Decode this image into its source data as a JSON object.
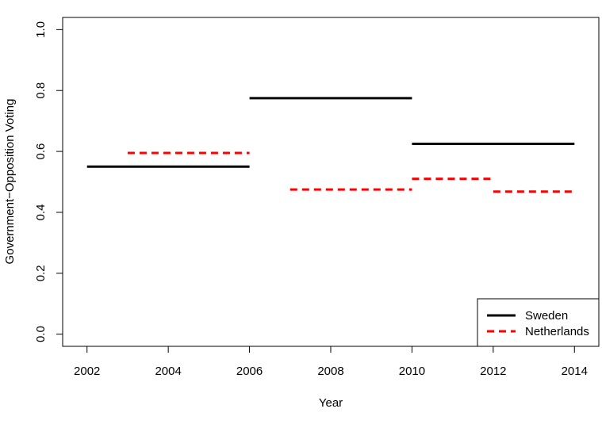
{
  "chart_data": {
    "type": "line",
    "title": "",
    "xlabel": "Year",
    "ylabel": "Government−Opposition Voting",
    "xlim": [
      2001.4,
      2014.6
    ],
    "ylim": [
      -0.04,
      1.04
    ],
    "xticks": [
      "2002",
      "2004",
      "2006",
      "2008",
      "2010",
      "2012",
      "2014"
    ],
    "yticks": [
      "0.0",
      "0.2",
      "0.4",
      "0.6",
      "0.8",
      "1.0"
    ],
    "grid": false,
    "legend_position": "bottom-right",
    "series": [
      {
        "name": "Sweden",
        "color": "#000000",
        "line_style": "solid",
        "segments": [
          {
            "x_start": 2002,
            "x_end": 2006,
            "y": 0.55
          },
          {
            "x_start": 2006,
            "x_end": 2010,
            "y": 0.775
          },
          {
            "x_start": 2010,
            "x_end": 2014,
            "y": 0.625
          }
        ]
      },
      {
        "name": "Netherlands",
        "color": "#ff0000",
        "line_style": "dashed",
        "segments": [
          {
            "x_start": 2003,
            "x_end": 2006,
            "y": 0.595
          },
          {
            "x_start": 2007,
            "x_end": 2010,
            "y": 0.475
          },
          {
            "x_start": 2010,
            "x_end": 2012,
            "y": 0.51
          },
          {
            "x_start": 2012,
            "x_end": 2014,
            "y": 0.468
          }
        ]
      }
    ]
  }
}
